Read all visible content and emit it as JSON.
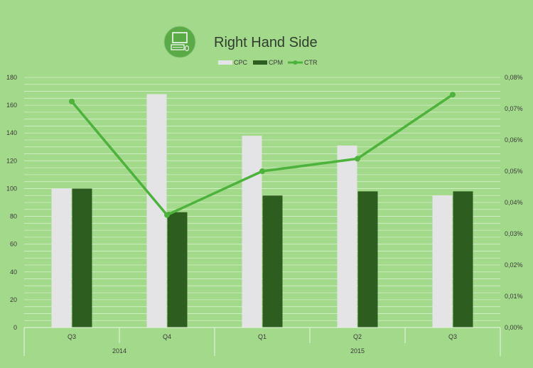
{
  "chart_data": {
    "type": "bar",
    "title": "Right Hand Side",
    "title_icon": "computer-icon",
    "categories": [
      "Q3",
      "Q4",
      "Q1",
      "Q2",
      "Q3"
    ],
    "category_groups": [
      {
        "label": "2014",
        "span": 2
      },
      {
        "label": "2015",
        "span": 3
      }
    ],
    "series": [
      {
        "name": "CPC",
        "type": "bar",
        "axis": "left",
        "color": "#e4e3e6",
        "values": [
          100,
          168,
          138,
          131,
          95
        ]
      },
      {
        "name": "CPM",
        "type": "bar",
        "axis": "left",
        "color": "#2e5e1f",
        "values": [
          100,
          83,
          95,
          98,
          98
        ]
      },
      {
        "name": "CTR",
        "type": "line",
        "axis": "right",
        "color": "#4db33d",
        "values": [
          0.0723,
          0.036,
          0.05,
          0.054,
          0.0745
        ]
      }
    ],
    "y_left": {
      "min": 0,
      "max": 180,
      "step": 20,
      "ticks": [
        "0",
        "20",
        "40",
        "60",
        "80",
        "100",
        "120",
        "140",
        "160",
        "180"
      ]
    },
    "y_right": {
      "min": 0,
      "max": 0.08,
      "step": 0.01,
      "ticks": [
        "0,00%",
        "0,01%",
        "0,02%",
        "0,03%",
        "0,04%",
        "0,05%",
        "0,06%",
        "0,07%",
        "0,08%"
      ]
    },
    "legend": {
      "position": "top-center",
      "entries": [
        "CPC",
        "CPM",
        "CTR"
      ]
    },
    "grid": true,
    "colors": {
      "background": "#a3d98a",
      "grid": "#d6f0cb",
      "axis_text": "#3a3a3a",
      "icon_circle": "#5aab48"
    }
  }
}
